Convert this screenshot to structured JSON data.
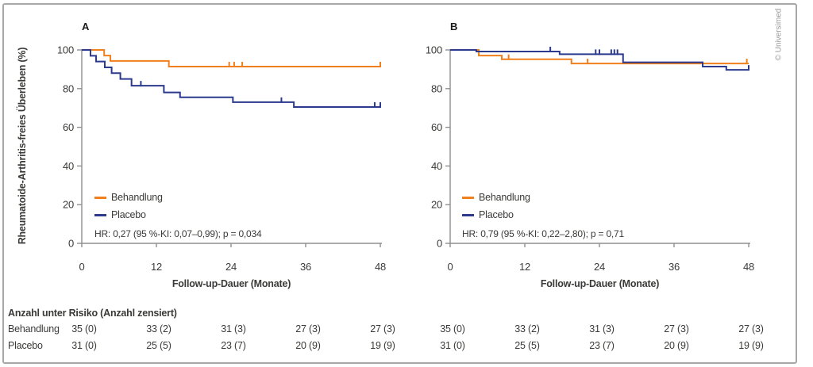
{
  "figure": {
    "copyright": "© Universimed",
    "colors": {
      "treatment": "#f07f1c",
      "placebo": "#2b3a8d",
      "axis": "#8f8f8f",
      "text": "#3a3a38",
      "border": "#a8a8a8"
    }
  },
  "legend": {
    "treatment_label": "Behandlung",
    "placebo_label": "Placebo"
  },
  "axes": {
    "x_label": "Follow-up-Dauer (Monate)",
    "y_label": "Rheumatoide-Arthritis-freies Überleben (%)",
    "x_ticks": [
      0,
      12,
      24,
      36,
      48
    ],
    "y_ticks": [
      100,
      80,
      60,
      40,
      20,
      0
    ],
    "x_range": [
      0,
      48
    ],
    "y_range": [
      0,
      100
    ]
  },
  "chart_data": [
    {
      "type": "line",
      "subtype": "kaplan-meier-step",
      "panel_label": "A",
      "hr_text": "HR: 0,27 (95 %-KI: 0,07–0,99); p = 0,034",
      "xlabel": "Follow-up-Dauer (Monate)",
      "ylabel": "Rheumatoide-Arthritis-freies Überleben (%)",
      "xlim": [
        0,
        48
      ],
      "ylim": [
        0,
        100
      ],
      "series": [
        {
          "name": "Behandlung",
          "color": "#f07f1c",
          "event_x": [
            0,
            3.6,
            4.6,
            14.0
          ],
          "level_y": [
            100,
            97.1,
            94.3,
            91.4
          ],
          "end_x": 48,
          "censors": [
            [
              23.7,
              91.4
            ],
            [
              24.5,
              91.4
            ],
            [
              25.8,
              91.4
            ],
            [
              48,
              91.4
            ]
          ]
        },
        {
          "name": "Placebo",
          "color": "#2b3a8d",
          "event_x": [
            0,
            1.4,
            2.3,
            3.7,
            4.8,
            6.2,
            8.0,
            13.2,
            15.8,
            24.3,
            34.1
          ],
          "level_y": [
            100,
            97,
            94,
            91,
            88,
            85,
            81.5,
            78,
            75.5,
            73,
            70.5
          ],
          "end_x": 48,
          "censors": [
            [
              9.5,
              81.5
            ],
            [
              32.1,
              73
            ],
            [
              47.1,
              70.5
            ],
            [
              48,
              70.5
            ]
          ]
        }
      ]
    },
    {
      "type": "line",
      "subtype": "kaplan-meier-step",
      "panel_label": "B",
      "hr_text": "HR: 0,79 (95 %-KI: 0,22–2,80); p = 0,71",
      "xlabel": "Follow-up-Dauer (Monate)",
      "ylabel": "Rheumatoide-Arthritis-freies Überleben (%)",
      "xlim": [
        0,
        48
      ],
      "ylim": [
        0,
        100
      ],
      "series": [
        {
          "name": "Behandlung",
          "color": "#f07f1c",
          "event_x": [
            0,
            4.6,
            8.3,
            19.5
          ],
          "level_y": [
            100,
            97.1,
            95.2,
            93.0
          ],
          "end_x": 48,
          "censors": [
            [
              9.4,
              95.2
            ],
            [
              22.1,
              93.0
            ],
            [
              47.7,
              93.0
            ]
          ]
        },
        {
          "name": "Placebo",
          "color": "#2b3a8d",
          "event_x": [
            0,
            4.2,
            17.6,
            27.8,
            40.6,
            44.4
          ],
          "level_y": [
            100,
            99.2,
            97.8,
            93.6,
            91.4,
            89.7
          ],
          "end_x": 48,
          "censors": [
            [
              16.1,
              99.2
            ],
            [
              23.4,
              97.8
            ],
            [
              24.0,
              97.8
            ],
            [
              25.9,
              97.8
            ],
            [
              26.4,
              97.8
            ],
            [
              26.9,
              97.8
            ],
            [
              48,
              89.7
            ]
          ]
        }
      ]
    }
  ],
  "risk_table": {
    "header": "Anzahl unter Risiko (Anzahl zensiert)",
    "time_points": [
      0,
      12,
      24,
      36,
      48
    ],
    "rows": [
      {
        "label": "Behandlung",
        "panel_a": [
          "35 (0)",
          "33 (2)",
          "31 (3)",
          "27 (3)",
          "27 (3)"
        ],
        "panel_b": [
          "35 (0)",
          "33 (2)",
          "31 (3)",
          "27 (3)",
          "27 (3)"
        ]
      },
      {
        "label": "Placebo",
        "panel_a": [
          "31 (0)",
          "25 (5)",
          "23 (7)",
          "20 (9)",
          "19 (9)"
        ],
        "panel_b": [
          "31 (0)",
          "25 (5)",
          "23 (7)",
          "20 (9)",
          "19 (9)"
        ]
      }
    ]
  }
}
